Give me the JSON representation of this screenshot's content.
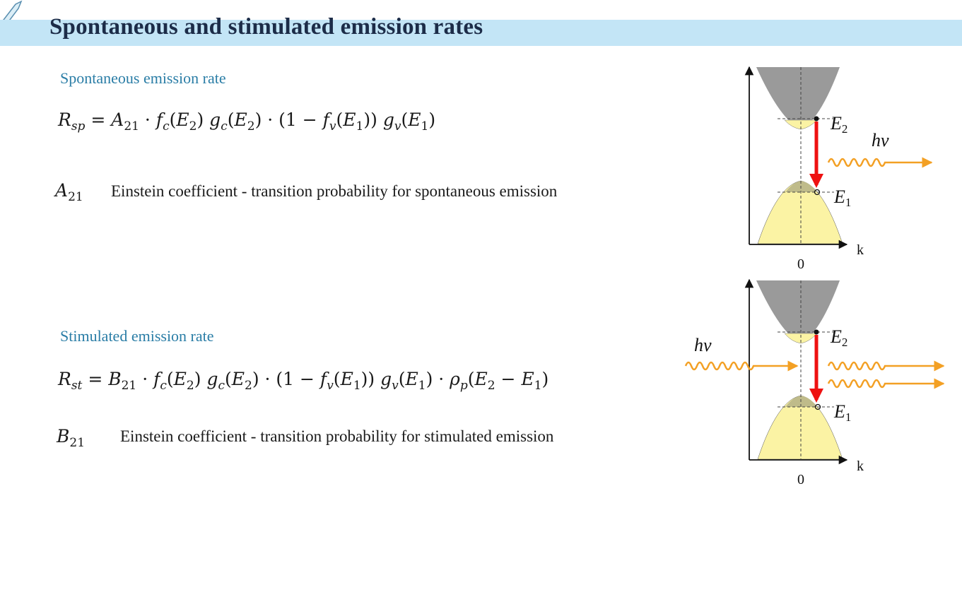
{
  "slide": {
    "title": "Spontaneous and stimulated emission rates"
  },
  "spontaneous": {
    "label": "Spontaneous emission rate",
    "coefficient": {
      "symbol": "A",
      "subscript": "21",
      "description": "Einstein coefficient - transition probability for spontaneous emission"
    }
  },
  "stimulated": {
    "label": "Stimulated emission rate",
    "coefficient": {
      "symbol": "B",
      "subscript": "21",
      "description": "Einstein coefficient - transition probability for stimulated emission"
    }
  },
  "diagrams": {
    "axis_label": "k",
    "origin_label": "0",
    "upper_level": "E",
    "upper_level_sub": "2",
    "lower_level": "E",
    "lower_level_sub": "1",
    "photon_label": "hν"
  },
  "colors": {
    "title_band": "#c3e5f6",
    "title_text": "#1c2c48",
    "section_label": "#2a7da6",
    "conduction_band": "#9a9a9a",
    "valence_band": "#fbf3a4",
    "transition_arrow": "#ee1111",
    "photon": "#f3a024"
  }
}
